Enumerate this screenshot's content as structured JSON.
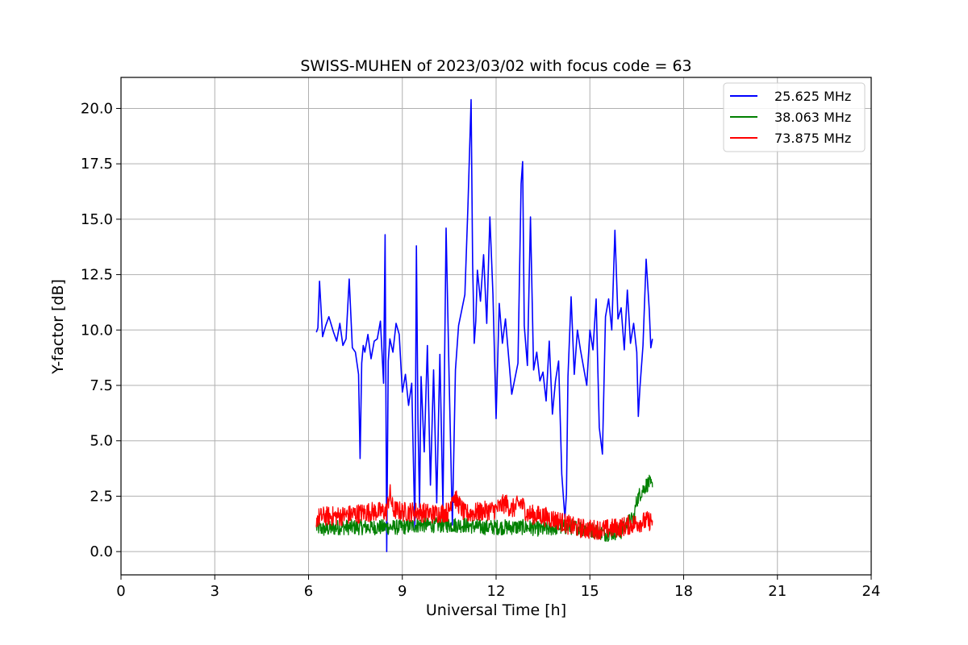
{
  "chart_data": {
    "type": "line",
    "title": "SWISS-MUHEN of 2023/03/02 with focus code = 63",
    "xlabel": "Universal Time [h]",
    "ylabel": "Y-factor [dB]",
    "xlim": [
      0,
      24
    ],
    "ylim": [
      -1.05,
      21.4
    ],
    "xticks": [
      0,
      3,
      6,
      9,
      12,
      15,
      18,
      21,
      24
    ],
    "xtick_labels": [
      "0",
      "3",
      "6",
      "9",
      "12",
      "15",
      "18",
      "21",
      "24"
    ],
    "yticks": [
      0.0,
      2.5,
      5.0,
      7.5,
      10.0,
      12.5,
      15.0,
      17.5,
      20.0
    ],
    "ytick_labels": [
      "0.0",
      "2.5",
      "5.0",
      "7.5",
      "10.0",
      "12.5",
      "15.0",
      "17.5",
      "20.0"
    ],
    "grid": true,
    "legend_position": "top-right",
    "series": [
      {
        "name": "25.625 MHz",
        "color": "#0000ff",
        "x": [
          6.25,
          6.3,
          6.35,
          6.45,
          6.55,
          6.65,
          6.8,
          6.9,
          7.0,
          7.1,
          7.2,
          7.3,
          7.4,
          7.5,
          7.6,
          7.65,
          7.7,
          7.75,
          7.8,
          7.9,
          8.0,
          8.1,
          8.2,
          8.3,
          8.4,
          8.45,
          8.5,
          8.55,
          8.6,
          8.7,
          8.8,
          8.9,
          9.0,
          9.1,
          9.2,
          9.3,
          9.4,
          9.45,
          9.5,
          9.55,
          9.6,
          9.7,
          9.8,
          9.9,
          10.0,
          10.1,
          10.2,
          10.3,
          10.4,
          10.5,
          10.6,
          10.7,
          10.8,
          10.9,
          11.0,
          11.1,
          11.2,
          11.25,
          11.3,
          11.35,
          11.4,
          11.5,
          11.6,
          11.7,
          11.8,
          11.9,
          12.0,
          12.1,
          12.2,
          12.3,
          12.5,
          12.7,
          12.8,
          12.85,
          12.9,
          13.0,
          13.1,
          13.2,
          13.3,
          13.4,
          13.5,
          13.6,
          13.7,
          13.8,
          13.9,
          14.0,
          14.1,
          14.2,
          14.25,
          14.3,
          14.4,
          14.5,
          14.6,
          14.7,
          14.8,
          14.9,
          15.0,
          15.1,
          15.2,
          15.3,
          15.4,
          15.5,
          15.6,
          15.7,
          15.8,
          15.9,
          16.0,
          16.1,
          16.2,
          16.3,
          16.4,
          16.5,
          16.55,
          16.6,
          16.7,
          16.8,
          16.9,
          16.95,
          17.0
        ],
        "y": [
          9.9,
          10.1,
          12.2,
          9.7,
          10.2,
          10.6,
          9.9,
          9.5,
          10.3,
          9.3,
          9.6,
          12.3,
          9.2,
          9.0,
          8.0,
          4.2,
          8.5,
          9.3,
          9.0,
          9.8,
          8.7,
          9.5,
          9.6,
          10.4,
          7.6,
          14.3,
          0.0,
          8.6,
          9.6,
          9.0,
          10.3,
          9.8,
          7.2,
          8.0,
          6.6,
          7.6,
          1.0,
          13.8,
          6.0,
          2.0,
          7.9,
          4.5,
          9.3,
          3.0,
          8.2,
          2.2,
          8.9,
          2.0,
          14.6,
          7.6,
          1.2,
          8.2,
          10.2,
          10.9,
          11.6,
          15.6,
          20.4,
          13.0,
          9.4,
          10.4,
          12.7,
          11.3,
          13.4,
          10.3,
          15.1,
          11.6,
          6.0,
          11.2,
          9.4,
          10.5,
          7.1,
          8.5,
          16.6,
          17.6,
          10.2,
          8.4,
          15.1,
          8.2,
          9.0,
          7.7,
          8.1,
          6.8,
          9.5,
          6.2,
          7.7,
          8.6,
          3.5,
          1.5,
          2.6,
          7.9,
          11.5,
          8.0,
          10.0,
          9.1,
          8.3,
          7.5,
          10.0,
          9.1,
          11.4,
          5.6,
          4.4,
          10.6,
          11.4,
          10.0,
          14.5,
          10.5,
          11.0,
          9.1,
          11.8,
          9.4,
          10.3,
          9.0,
          6.1,
          7.4,
          9.3,
          13.2,
          10.9,
          9.2,
          9.6
        ]
      },
      {
        "name": "38.063 MHz",
        "color": "#008000",
        "x": [
          6.25,
          6.5,
          7.0,
          7.5,
          8.0,
          8.5,
          9.0,
          9.5,
          10.0,
          10.5,
          11.0,
          11.5,
          12.0,
          12.5,
          13.0,
          13.5,
          14.0,
          14.5,
          15.0,
          15.5,
          16.0,
          16.2,
          16.4,
          16.5,
          16.6,
          16.7,
          16.8,
          16.9,
          17.0
        ],
        "y": [
          1.1,
          1.0,
          1.1,
          1.1,
          1.1,
          1.1,
          1.1,
          1.2,
          1.2,
          1.2,
          1.2,
          1.1,
          1.1,
          1.1,
          1.1,
          1.0,
          1.1,
          1.1,
          1.0,
          0.8,
          0.9,
          1.3,
          1.5,
          2.3,
          2.6,
          2.8,
          3.0,
          3.1,
          2.9
        ],
        "spread": 0.35
      },
      {
        "name": "73.875 MHz",
        "color": "#ff0000",
        "x": [
          6.25,
          6.5,
          7.0,
          7.5,
          8.0,
          8.5,
          8.6,
          8.7,
          9.0,
          9.5,
          10.0,
          10.5,
          10.6,
          11.0,
          11.5,
          12.0,
          12.3,
          12.5,
          12.8,
          13.0,
          13.5,
          14.0,
          14.5,
          15.0,
          15.5,
          16.0,
          16.5,
          17.0
        ],
        "y": [
          1.5,
          1.6,
          1.6,
          1.7,
          1.8,
          1.8,
          2.7,
          1.9,
          1.8,
          1.8,
          1.7,
          1.8,
          2.6,
          1.7,
          1.8,
          1.9,
          2.2,
          1.9,
          2.2,
          1.7,
          1.6,
          1.4,
          1.1,
          1.0,
          1.0,
          1.1,
          1.3,
          1.4
        ],
        "spread": 0.45
      }
    ]
  }
}
